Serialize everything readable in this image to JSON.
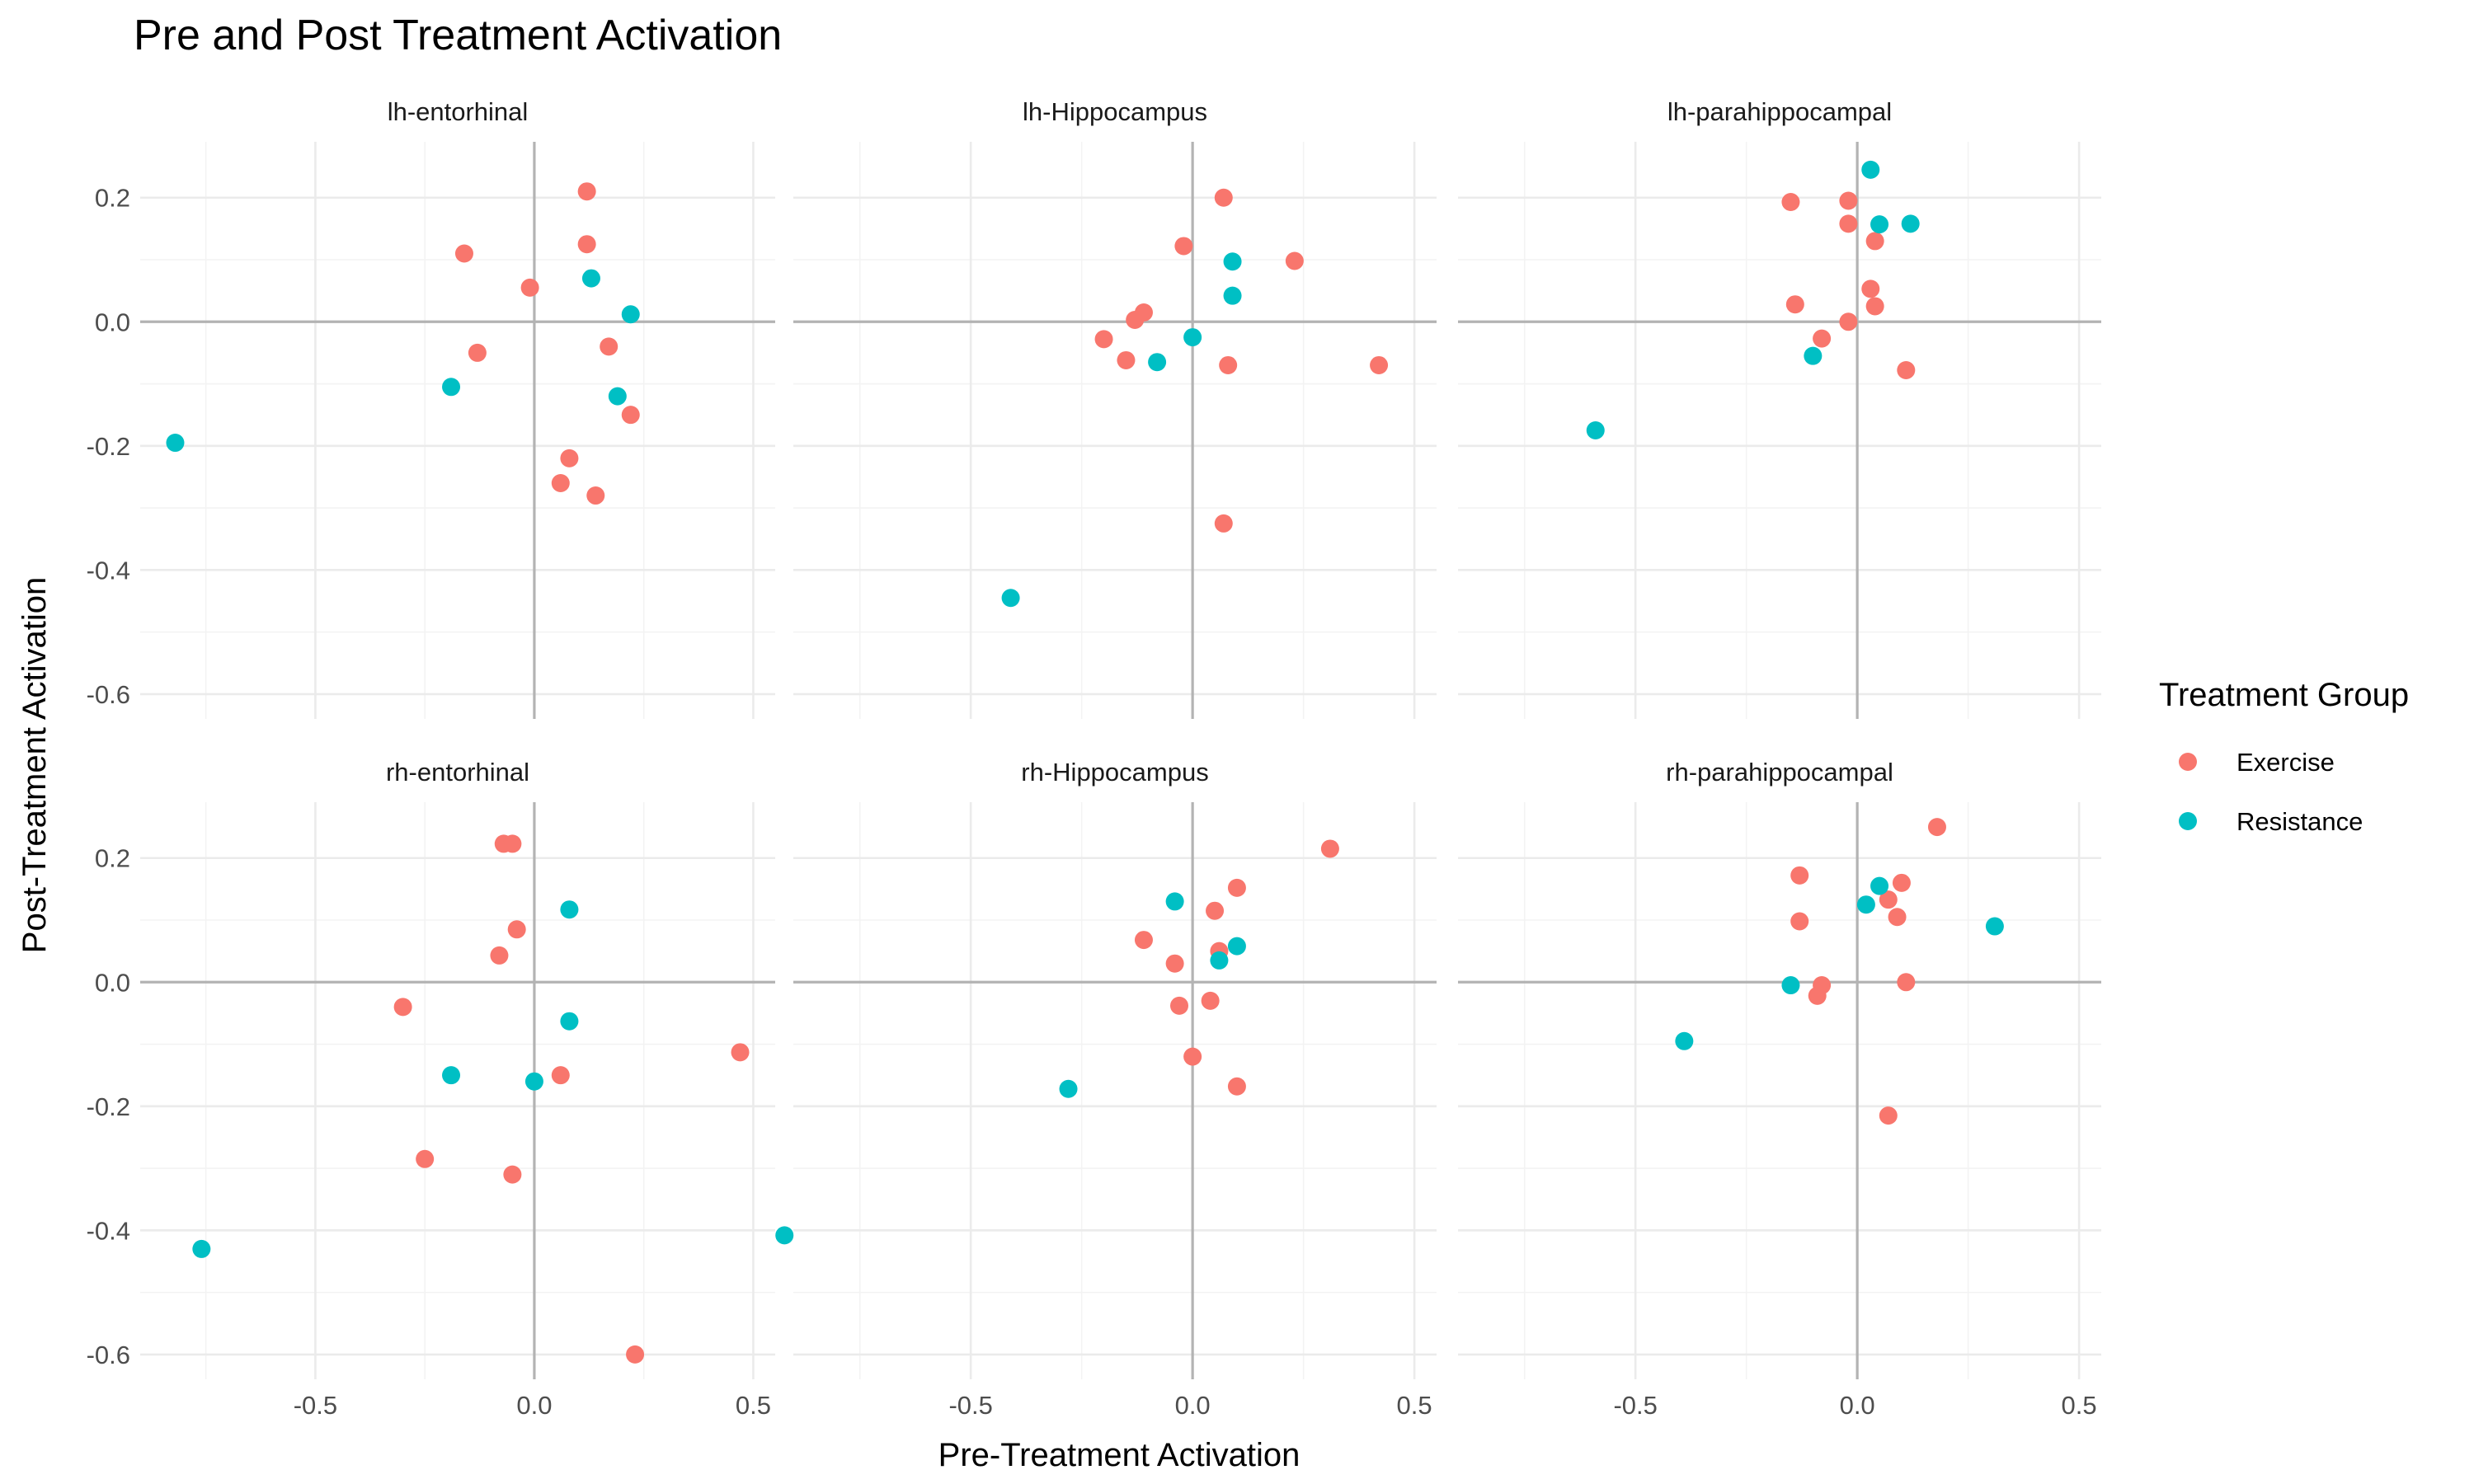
{
  "chart_data": {
    "type": "scatter",
    "title": "Pre and Post Treatment Activation",
    "xlabel": "Pre-Treatment Activation",
    "ylabel": "Post-Treatment Activation",
    "xlim": [
      -0.9,
      0.55
    ],
    "ylim": [
      -0.64,
      0.29
    ],
    "x_ticks": [
      "-0.5",
      "0.0",
      "0.5"
    ],
    "y_ticks": [
      "0.2",
      "0.0",
      "-0.2",
      "-0.4",
      "-0.6"
    ],
    "grid": true,
    "legend": {
      "title": "Treatment Group",
      "position": "right",
      "entries": [
        {
          "name": "Exercise",
          "color": "#F8766D"
        },
        {
          "name": "Resistance",
          "color": "#00BFC4"
        }
      ]
    },
    "panels": [
      {
        "name": "lh-entorhinal",
        "series": [
          {
            "name": "Exercise",
            "points": [
              [
                0.12,
                0.21
              ],
              [
                -0.16,
                0.11
              ],
              [
                0.12,
                0.125
              ],
              [
                -0.01,
                0.055
              ],
              [
                -0.13,
                -0.05
              ],
              [
                0.17,
                -0.04
              ],
              [
                0.22,
                -0.15
              ],
              [
                0.08,
                -0.22
              ],
              [
                0.06,
                -0.26
              ],
              [
                0.14,
                -0.28
              ]
            ]
          },
          {
            "name": "Resistance",
            "points": [
              [
                0.13,
                0.07
              ],
              [
                0.22,
                0.012
              ],
              [
                -0.19,
                -0.105
              ],
              [
                0.19,
                -0.12
              ],
              [
                -0.82,
                -0.195
              ]
            ]
          }
        ]
      },
      {
        "name": "lh-Hippocampus",
        "series": [
          {
            "name": "Exercise",
            "points": [
              [
                0.07,
                0.2
              ],
              [
                -0.02,
                0.122
              ],
              [
                0.23,
                0.098
              ],
              [
                -0.11,
                0.015
              ],
              [
                -0.13,
                0.003
              ],
              [
                -0.2,
                -0.028
              ],
              [
                -0.15,
                -0.062
              ],
              [
                0.08,
                -0.07
              ],
              [
                0.42,
                -0.07
              ],
              [
                0.07,
                -0.325
              ]
            ]
          },
          {
            "name": "Resistance",
            "points": [
              [
                0.09,
                0.097
              ],
              [
                0.09,
                0.042
              ],
              [
                0.0,
                -0.025
              ],
              [
                -0.08,
                -0.065
              ],
              [
                -0.41,
                -0.445
              ]
            ]
          }
        ]
      },
      {
        "name": "lh-parahippocampal",
        "series": [
          {
            "name": "Exercise",
            "points": [
              [
                -0.15,
                0.193
              ],
              [
                -0.02,
                0.195
              ],
              [
                -0.02,
                0.158
              ],
              [
                0.04,
                0.13
              ],
              [
                -0.14,
                0.028
              ],
              [
                0.03,
                0.053
              ],
              [
                0.04,
                0.025
              ],
              [
                -0.02,
                0.0
              ],
              [
                -0.08,
                -0.027
              ],
              [
                0.11,
                -0.078
              ]
            ]
          },
          {
            "name": "Resistance",
            "points": [
              [
                0.03,
                0.245
              ],
              [
                0.05,
                0.157
              ],
              [
                0.12,
                0.158
              ],
              [
                -0.1,
                -0.055
              ],
              [
                -0.59,
                -0.175
              ]
            ]
          }
        ]
      },
      {
        "name": "rh-entorhinal",
        "series": [
          {
            "name": "Exercise",
            "points": [
              [
                -0.07,
                0.223
              ],
              [
                -0.05,
                0.223
              ],
              [
                -0.04,
                0.085
              ],
              [
                -0.08,
                0.043
              ],
              [
                -0.3,
                -0.04
              ],
              [
                0.47,
                -0.113
              ],
              [
                0.06,
                -0.15
              ],
              [
                -0.25,
                -0.285
              ],
              [
                -0.05,
                -0.31
              ],
              [
                0.23,
                -0.6
              ]
            ]
          },
          {
            "name": "Resistance",
            "points": [
              [
                0.08,
                0.117
              ],
              [
                0.08,
                -0.063
              ],
              [
                -0.19,
                -0.15
              ],
              [
                0.0,
                -0.16
              ],
              [
                -0.76,
                -0.43
              ]
            ]
          }
        ]
      },
      {
        "name": "rh-Hippocampus",
        "series": [
          {
            "name": "Exercise",
            "points": [
              [
                0.31,
                0.215
              ],
              [
                0.1,
                0.152
              ],
              [
                0.05,
                0.115
              ],
              [
                -0.11,
                0.068
              ],
              [
                0.06,
                0.05
              ],
              [
                -0.04,
                0.03
              ],
              [
                -0.03,
                -0.038
              ],
              [
                0.04,
                -0.03
              ],
              [
                0.0,
                -0.12
              ],
              [
                0.1,
                -0.168
              ]
            ]
          },
          {
            "name": "Resistance",
            "points": [
              [
                -0.04,
                0.13
              ],
              [
                0.1,
                0.058
              ],
              [
                0.06,
                0.035
              ],
              [
                -0.28,
                -0.172
              ],
              [
                -0.92,
                -0.408
              ]
            ]
          }
        ]
      },
      {
        "name": "rh-parahippocampal",
        "series": [
          {
            "name": "Exercise",
            "points": [
              [
                0.18,
                0.25
              ],
              [
                -0.13,
                0.172
              ],
              [
                0.1,
                0.16
              ],
              [
                0.07,
                0.133
              ],
              [
                -0.13,
                0.098
              ],
              [
                0.09,
                0.105
              ],
              [
                0.11,
                0.0
              ],
              [
                -0.08,
                -0.005
              ],
              [
                -0.09,
                -0.022
              ],
              [
                0.07,
                -0.215
              ]
            ]
          },
          {
            "name": "Resistance",
            "points": [
              [
                0.05,
                0.155
              ],
              [
                0.02,
                0.125
              ],
              [
                0.31,
                0.09
              ],
              [
                -0.15,
                -0.005
              ],
              [
                -0.39,
                -0.095
              ]
            ]
          }
        ]
      }
    ]
  }
}
